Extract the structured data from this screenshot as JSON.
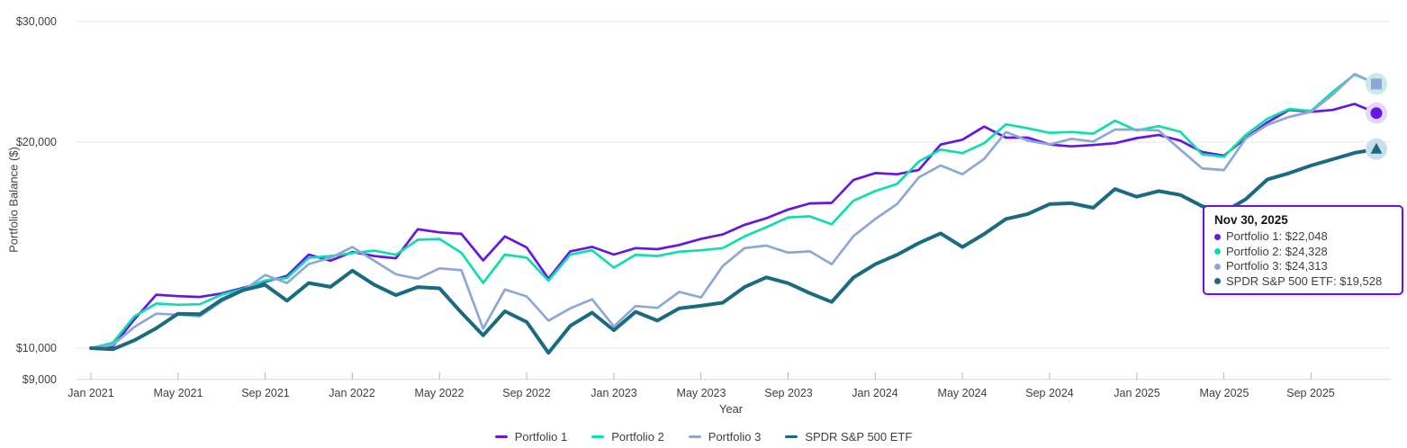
{
  "chart_data": {
    "type": "line",
    "title": "",
    "xlabel": "Year",
    "ylabel": "Portfolio Balance ($)",
    "y_scale": "log",
    "ylim": [
      9000,
      30000
    ],
    "grid": "horizontal-only",
    "legend_position": "bottom-center",
    "y_ticks": [
      {
        "label": "$30,000",
        "value": 30000
      },
      {
        "label": "$20,000",
        "value": 20000
      },
      {
        "label": "$10,000",
        "value": 10000
      },
      {
        "label": "$9,000",
        "value": 9000
      }
    ],
    "x_tick_labels": [
      "Jan 2021",
      "May 2021",
      "Sep 2021",
      "Jan 2022",
      "May 2022",
      "Sep 2022",
      "Jan 2023",
      "May 2023",
      "Sep 2023",
      "Jan 2024",
      "May 2024",
      "Sep 2024",
      "Jan 2025",
      "May 2025",
      "Sep 2025"
    ],
    "x_tick_point_interval": 4,
    "x": [
      "Jan 1, 2021 (start)",
      "Jan 2021",
      "Feb 2021",
      "Mar 2021",
      "Apr 2021",
      "May 2021",
      "Jun 2021",
      "Jul 2021",
      "Aug 2021",
      "Sep 2021",
      "Oct 2021",
      "Nov 2021",
      "Dec 2021",
      "Jan 2022",
      "Feb 2022",
      "Mar 2022",
      "Apr 2022",
      "May 2022",
      "Jun 2022",
      "Jul 2022",
      "Aug 2022",
      "Sep 2022",
      "Oct 2022",
      "Nov 2022",
      "Dec 2022",
      "Jan 2023",
      "Feb 2023",
      "Mar 2023",
      "Apr 2023",
      "May 2023",
      "Jun 2023",
      "Jul 2023",
      "Aug 2023",
      "Sep 2023",
      "Oct 2023",
      "Nov 2023",
      "Dec 2023",
      "Jan 2024",
      "Feb 2024",
      "Mar 2024",
      "Apr 2024",
      "May 2024",
      "Jun 2024",
      "Jul 2024",
      "Aug 2024",
      "Sep 2024",
      "Oct 2024",
      "Nov 2024",
      "Dec 2024",
      "Jan 2025",
      "Feb 2025",
      "Mar 2025",
      "Apr 2025",
      "May 2025",
      "Jun 2025",
      "Jul 2025",
      "Aug 2025",
      "Sep 2025",
      "Oct 2025",
      "Nov 2025"
    ],
    "values_note": "values are month-end balances read approximately from the plotted lines; final values are exact per tooltip",
    "series": [
      {
        "name": "Portfolio 1",
        "color": "#6516e3",
        "line_width": 2.7,
        "end_marker": {
          "shape": "circle",
          "halo": "#e5d6fa"
        },
        "final_value_label": "$22,048",
        "values": [
          10000,
          10060,
          11020,
          11970,
          11910,
          11880,
          12020,
          12250,
          12500,
          12750,
          13700,
          13420,
          13820,
          13630,
          13530,
          14920,
          14760,
          14690,
          13430,
          14560,
          14030,
          12630,
          13850,
          14060,
          13700,
          14000,
          13950,
          14150,
          14440,
          14660,
          15140,
          15480,
          15940,
          16270,
          16300,
          17610,
          18020,
          17950,
          18210,
          19830,
          20160,
          21070,
          20300,
          20300,
          19830,
          19710,
          19800,
          19920,
          20270,
          20480,
          20100,
          19340,
          19100,
          20270,
          21370,
          22290,
          22140,
          22280,
          22740,
          22048
        ]
      },
      {
        "name": "Portfolio 2",
        "color": "#0cdfad",
        "line_width": 2.7,
        "end_marker": {
          "shape": "none",
          "halo": "#c7ebe5"
        },
        "final_value_label": "$24,328",
        "values": [
          10000,
          10180,
          11130,
          11620,
          11570,
          11590,
          11970,
          12210,
          12560,
          12660,
          13550,
          13630,
          13770,
          13880,
          13690,
          14400,
          14440,
          13780,
          12450,
          13700,
          13560,
          12550,
          13700,
          13900,
          13110,
          13690,
          13630,
          13830,
          13900,
          14000,
          14560,
          15020,
          15520,
          15580,
          15170,
          16420,
          16960,
          17370,
          18730,
          19500,
          19270,
          19920,
          21230,
          20950,
          20630,
          20690,
          20570,
          21490,
          20800,
          21100,
          20700,
          19200,
          19030,
          20480,
          21630,
          22360,
          22200,
          23690,
          25100,
          24328
        ]
      },
      {
        "name": "Portfolio 3",
        "color": "#8fa7d6",
        "line_width": 2.7,
        "end_marker": {
          "shape": "square",
          "halo": "#c7ebe5"
        },
        "final_value_label": "$24,313",
        "values": [
          10000,
          10110,
          10740,
          11230,
          11190,
          11130,
          11700,
          12140,
          12790,
          12450,
          13270,
          13550,
          14050,
          13420,
          12820,
          12630,
          13080,
          13000,
          10680,
          12180,
          11900,
          10970,
          11430,
          11790,
          10760,
          11520,
          11450,
          12080,
          11860,
          13180,
          14000,
          14120,
          13790,
          13850,
          13260,
          14580,
          15440,
          16230,
          17760,
          18490,
          17950,
          18900,
          20690,
          20100,
          19830,
          20220,
          20030,
          20860,
          20860,
          20800,
          19500,
          18310,
          18200,
          20240,
          21200,
          21770,
          22140,
          23460,
          25150,
          24313
        ]
      },
      {
        "name": "SPDR S&P 500 ETF",
        "color": "#1a6b80",
        "line_width": 4,
        "end_marker": {
          "shape": "triangle",
          "halo": "#ccdee9"
        },
        "final_value_label": "$19,528",
        "values": [
          10000,
          9960,
          10270,
          10690,
          11230,
          11210,
          11770,
          12160,
          12370,
          11730,
          12450,
          12290,
          12980,
          12380,
          11950,
          12280,
          12230,
          11270,
          10440,
          11320,
          10920,
          9840,
          10780,
          11270,
          10620,
          11300,
          10970,
          11430,
          11530,
          11650,
          12280,
          12690,
          12440,
          12030,
          11680,
          12680,
          13260,
          13690,
          14240,
          14710,
          14050,
          14680,
          15440,
          15700,
          16230,
          16280,
          16030,
          17080,
          16640,
          16960,
          16740,
          16120,
          15800,
          16500,
          17640,
          18020,
          18480,
          18880,
          19290,
          19528
        ]
      }
    ],
    "tooltip": {
      "title": "Nov 30, 2025",
      "rows": [
        {
          "label": "Portfolio 1",
          "value": "$22,048",
          "color": "#6516e3"
        },
        {
          "label": "Portfolio 2",
          "value": "$24,328",
          "color": "#0cdfad"
        },
        {
          "label": "Portfolio 3",
          "value": "$24,313",
          "color": "#8fa7d6"
        },
        {
          "label": "SPDR S&P 500 ETF",
          "value": "$19,528",
          "color": "#1a6b80"
        }
      ]
    },
    "legend": [
      "Portfolio 1",
      "Portfolio 2",
      "Portfolio 3",
      "SPDR S&P 500 ETF"
    ]
  },
  "colors": {
    "background": "#ffffff",
    "gridline": "#e7e7e7",
    "axis_line": "#d9d9d9",
    "tick_mark": "#b5b5b5",
    "text": "#3f3f3f",
    "tooltip_border": "#6516e3"
  }
}
